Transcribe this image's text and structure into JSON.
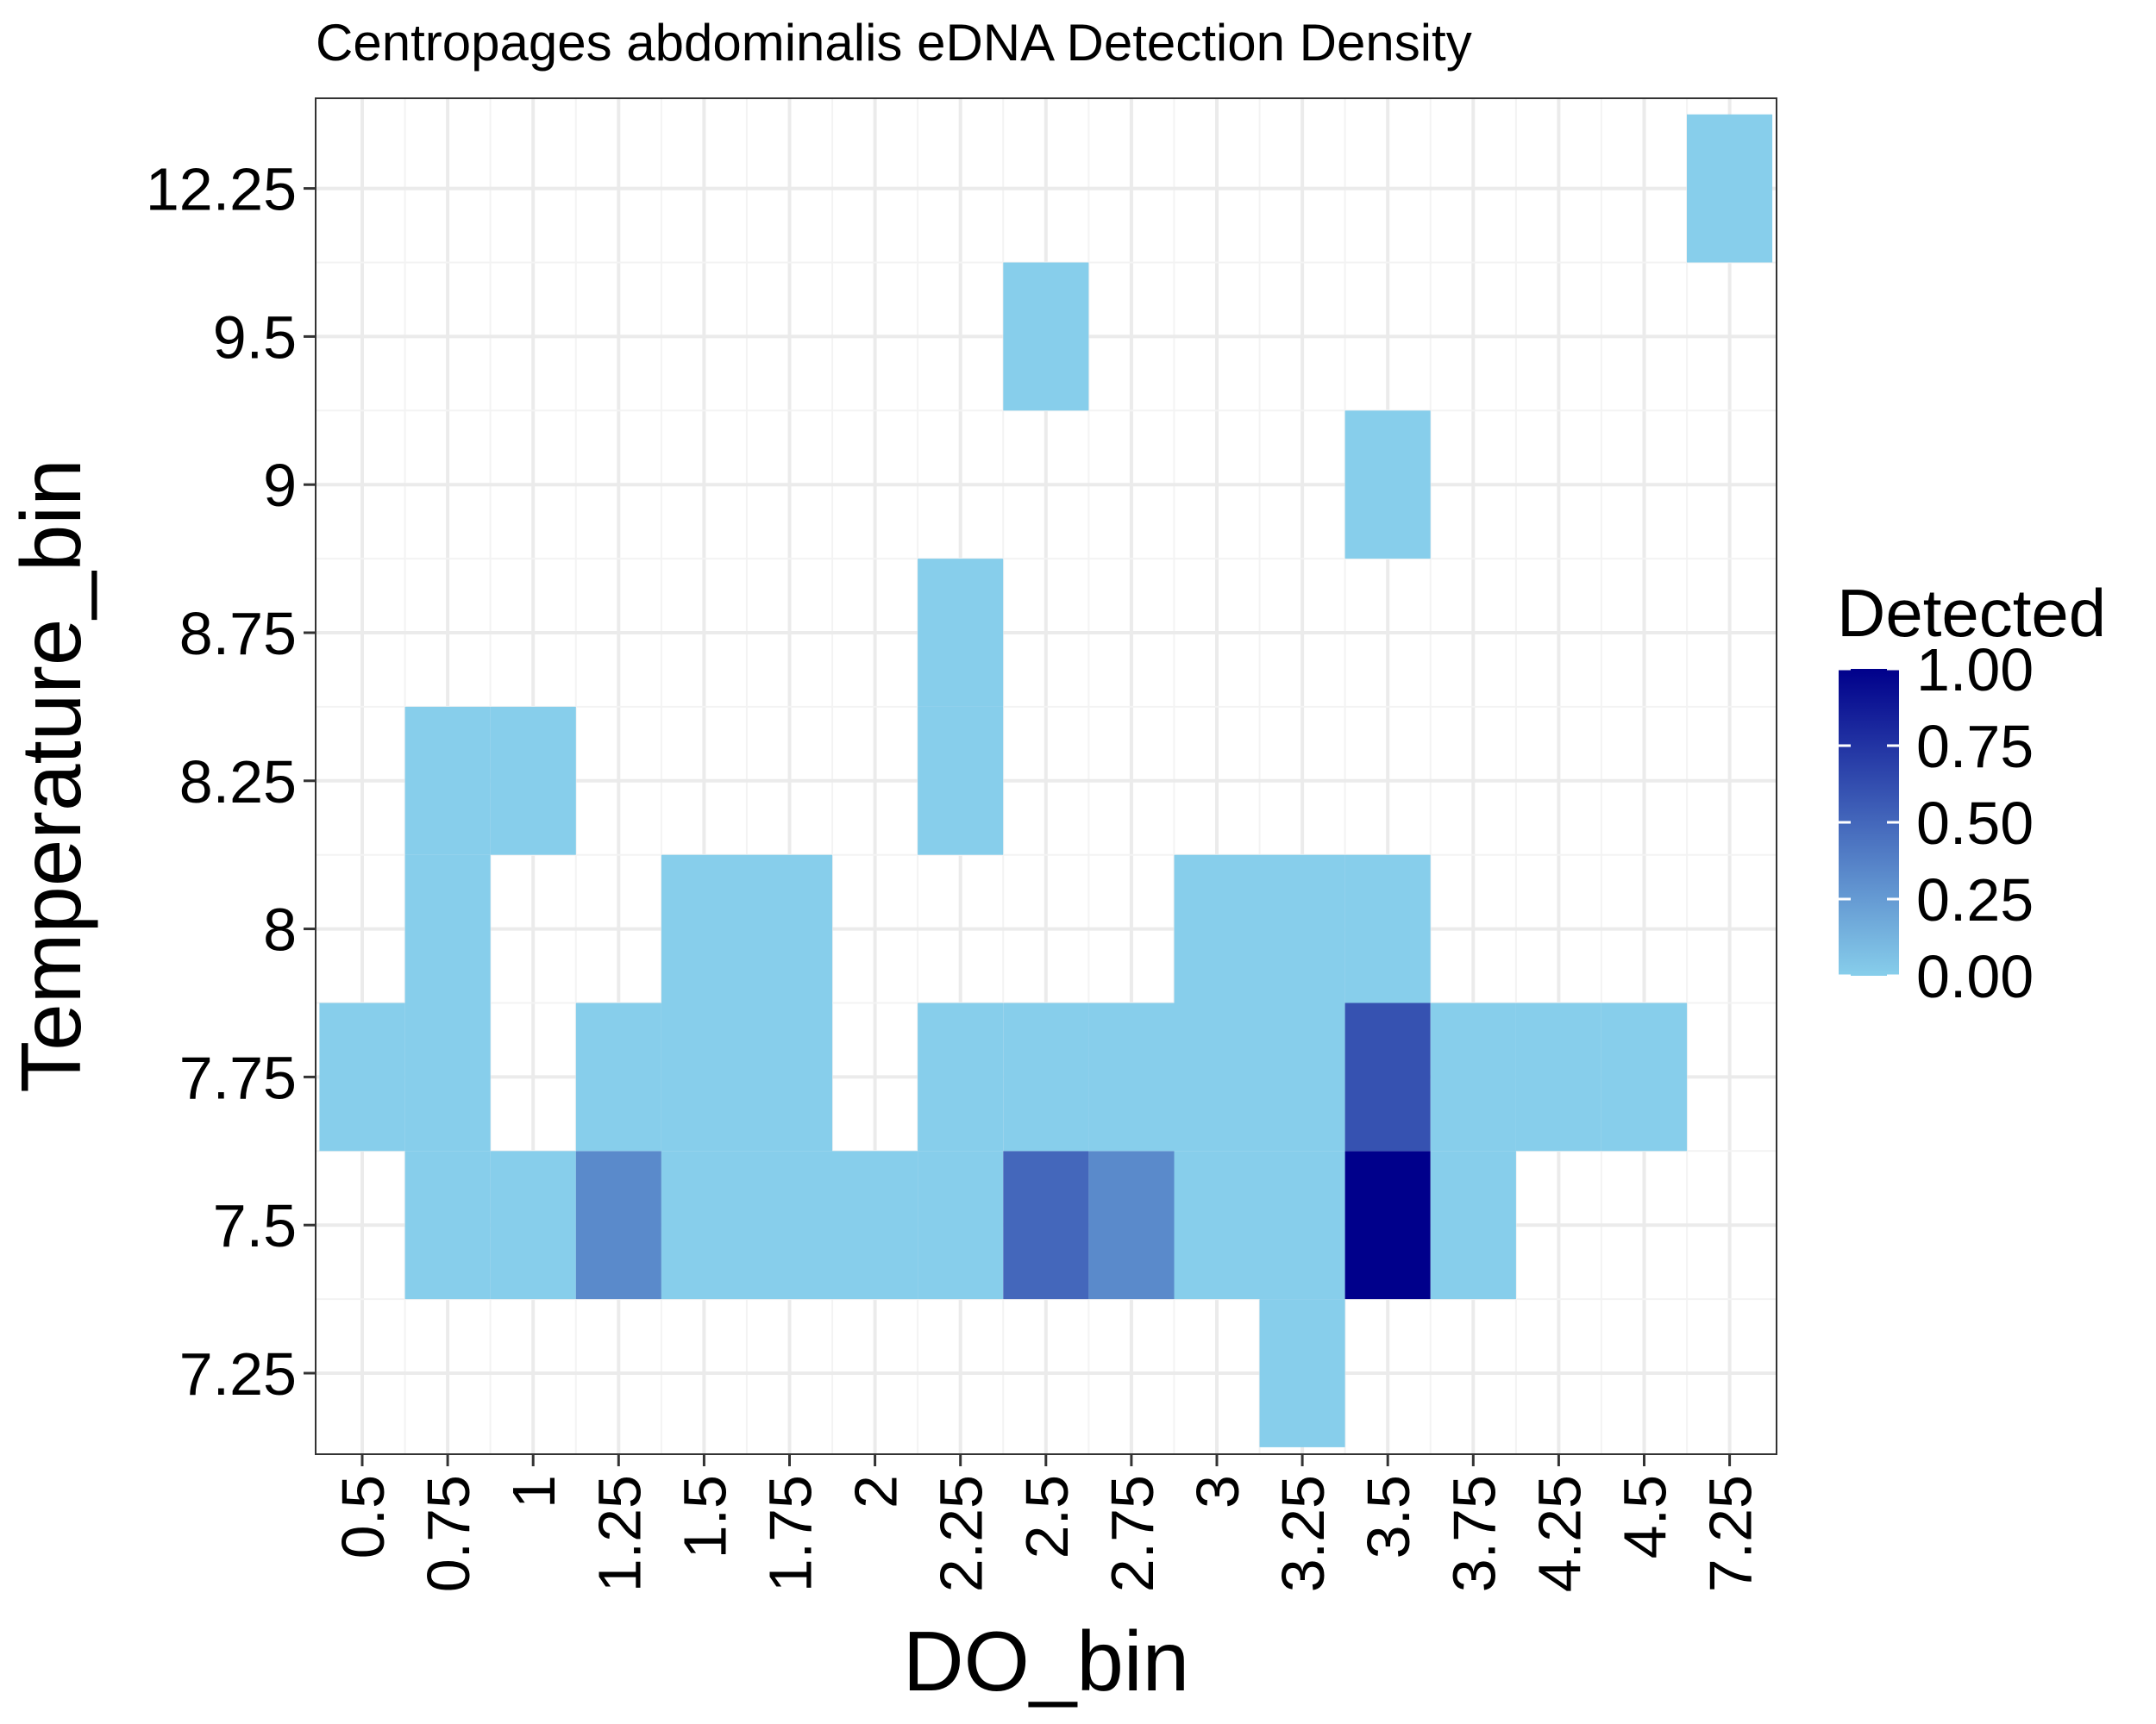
{
  "chart_data": {
    "type": "heatmap",
    "title": "Centropages abdominalis eDNA Detection Density",
    "xlabel": "DO_bin",
    "ylabel": "Temperature_bin",
    "x_categories": [
      "0.5",
      "0.75",
      "1",
      "1.25",
      "1.5",
      "1.75",
      "2",
      "2.25",
      "2.5",
      "2.75",
      "3",
      "3.25",
      "3.5",
      "3.75",
      "4.25",
      "4.5",
      "7.25"
    ],
    "y_categories": [
      "7.25",
      "7.5",
      "7.75",
      "8",
      "8.25",
      "8.75",
      "9",
      "9.5",
      "12.25"
    ],
    "fill_range": [
      0,
      1
    ],
    "fill_low_color": "#87CEEB",
    "fill_high_color": "#00008B",
    "grid": true,
    "cells": [
      {
        "x": "0.5",
        "y": "7.75",
        "value": 0.0
      },
      {
        "x": "0.75",
        "y": "7.5",
        "value": 0.0
      },
      {
        "x": "0.75",
        "y": "7.75",
        "value": 0.0
      },
      {
        "x": "0.75",
        "y": "8",
        "value": 0.0
      },
      {
        "x": "0.75",
        "y": "8.25",
        "value": 0.0
      },
      {
        "x": "1",
        "y": "7.5",
        "value": 0.0
      },
      {
        "x": "1",
        "y": "8.25",
        "value": 0.0
      },
      {
        "x": "1.25",
        "y": "7.5",
        "value": 0.33
      },
      {
        "x": "1.25",
        "y": "7.75",
        "value": 0.0
      },
      {
        "x": "1.5",
        "y": "7.5",
        "value": 0.0
      },
      {
        "x": "1.5",
        "y": "7.75",
        "value": 0.0
      },
      {
        "x": "1.5",
        "y": "8",
        "value": 0.0
      },
      {
        "x": "1.75",
        "y": "7.5",
        "value": 0.0
      },
      {
        "x": "1.75",
        "y": "7.75",
        "value": 0.0
      },
      {
        "x": "1.75",
        "y": "8",
        "value": 0.0
      },
      {
        "x": "2",
        "y": "7.5",
        "value": 0.0
      },
      {
        "x": "2.25",
        "y": "7.5",
        "value": 0.0
      },
      {
        "x": "2.25",
        "y": "7.75",
        "value": 0.0
      },
      {
        "x": "2.25",
        "y": "8.25",
        "value": 0.0
      },
      {
        "x": "2.25",
        "y": "8.75",
        "value": 0.0
      },
      {
        "x": "2.5",
        "y": "7.5",
        "value": 0.5
      },
      {
        "x": "2.5",
        "y": "7.75",
        "value": 0.0
      },
      {
        "x": "2.5",
        "y": "9.5",
        "value": 0.0
      },
      {
        "x": "2.75",
        "y": "7.5",
        "value": 0.33
      },
      {
        "x": "2.75",
        "y": "7.75",
        "value": 0.0
      },
      {
        "x": "3",
        "y": "7.5",
        "value": 0.0
      },
      {
        "x": "3",
        "y": "7.75",
        "value": 0.0
      },
      {
        "x": "3",
        "y": "8",
        "value": 0.0
      },
      {
        "x": "3.25",
        "y": "7.25",
        "value": 0.0
      },
      {
        "x": "3.25",
        "y": "7.5",
        "value": 0.0
      },
      {
        "x": "3.25",
        "y": "7.75",
        "value": 0.0
      },
      {
        "x": "3.25",
        "y": "8",
        "value": 0.0
      },
      {
        "x": "3.5",
        "y": "7.5",
        "value": 1.0
      },
      {
        "x": "3.5",
        "y": "7.75",
        "value": 0.6
      },
      {
        "x": "3.5",
        "y": "8",
        "value": 0.0
      },
      {
        "x": "3.5",
        "y": "9",
        "value": 0.0
      },
      {
        "x": "3.75",
        "y": "7.5",
        "value": 0.0
      },
      {
        "x": "3.75",
        "y": "7.75",
        "value": 0.0
      },
      {
        "x": "4.25",
        "y": "7.75",
        "value": 0.0
      },
      {
        "x": "4.5",
        "y": "7.75",
        "value": 0.0
      },
      {
        "x": "7.25",
        "y": "12.25",
        "value": 0.0
      }
    ],
    "legend": {
      "title": "Detected",
      "labels": [
        "1.00",
        "0.75",
        "0.50",
        "0.25",
        "0.00"
      ],
      "values": [
        1.0,
        0.75,
        0.5,
        0.25,
        0.0
      ],
      "placement": "right"
    }
  }
}
